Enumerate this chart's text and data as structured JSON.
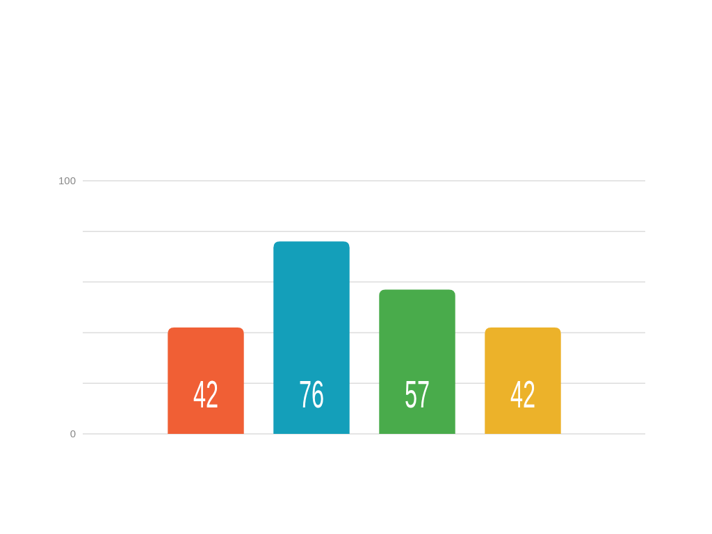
{
  "chart_data": {
    "type": "bar",
    "categories": [
      null,
      null,
      null,
      null
    ],
    "values": [
      42,
      76,
      57,
      42
    ],
    "colors": [
      "#f05f35",
      "#149fba",
      "#49ab4b",
      "#ecb22a"
    ],
    "ylim": [
      0,
      100
    ],
    "yticks": [
      0,
      {
        "value": 20,
        "label": null
      },
      {
        "value": 40,
        "label": null
      },
      {
        "value": 60,
        "label": null
      },
      {
        "value": 80,
        "label": null
      },
      100
    ],
    "grid": "y",
    "data_labels": true
  }
}
